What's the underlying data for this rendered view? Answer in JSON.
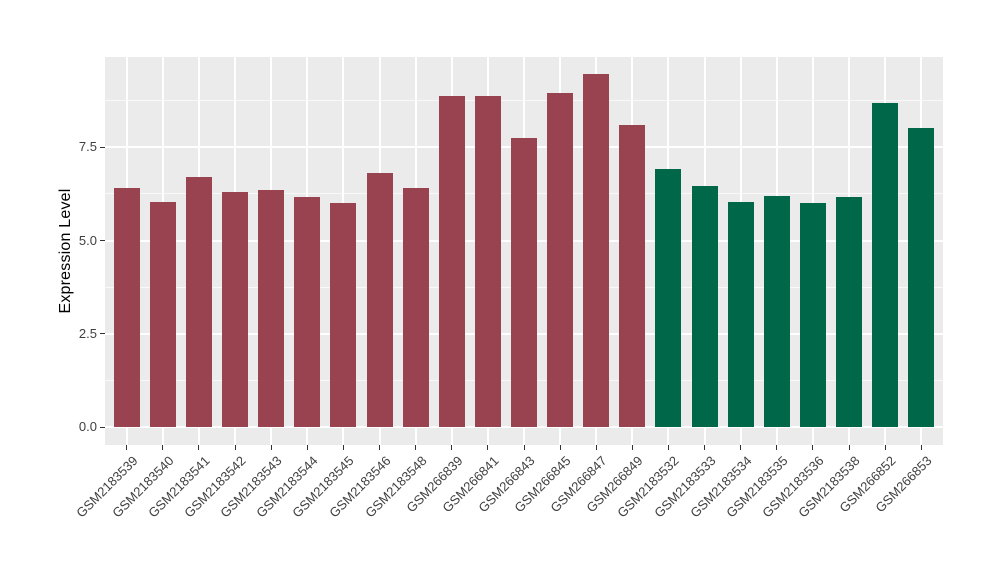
{
  "chart_data": {
    "type": "bar",
    "title": "",
    "xlabel": "",
    "ylabel": "Expression Level",
    "legend_position": "none",
    "grid": true,
    "panel_bg": "#EBEBEB",
    "grid_color": "#FFFFFF",
    "figure_bg": "#FFFFFF",
    "bar_color_group1": "#9A4350",
    "bar_color_group2": "#006748",
    "ylim": [
      -0.47,
      9.92
    ],
    "ytick_labels": [
      "0.0",
      "2.5",
      "5.0",
      "7.5"
    ],
    "ytick_values": [
      0,
      2.5,
      5,
      7.5
    ],
    "minor_gridline_values": [
      1.25,
      3.75,
      6.25,
      8.75
    ],
    "categories": [
      "GSM2183539",
      "GSM2183540",
      "GSM2183541",
      "GSM2183542",
      "GSM2183543",
      "GSM2183544",
      "GSM2183545",
      "GSM2183546",
      "GSM2183548",
      "GSM266839",
      "GSM266841",
      "GSM266843",
      "GSM266845",
      "GSM266847",
      "GSM266849",
      "GSM2183532",
      "GSM2183533",
      "GSM2183534",
      "GSM2183535",
      "GSM2183536",
      "GSM2183538",
      "GSM266852",
      "GSM266853"
    ],
    "values": [
      6.42,
      6.03,
      6.71,
      6.29,
      6.36,
      6.16,
      6.0,
      6.81,
      6.42,
      8.88,
      8.88,
      7.75,
      8.95,
      9.47,
      8.09,
      6.92,
      6.47,
      6.03,
      6.2,
      6.0,
      6.16,
      8.68,
      8.02
    ],
    "bar_colors": [
      "#9A4350",
      "#9A4350",
      "#9A4350",
      "#9A4350",
      "#9A4350",
      "#9A4350",
      "#9A4350",
      "#9A4350",
      "#9A4350",
      "#9A4350",
      "#9A4350",
      "#9A4350",
      "#9A4350",
      "#9A4350",
      "#9A4350",
      "#006748",
      "#006748",
      "#006748",
      "#006748",
      "#006748",
      "#006748",
      "#006748",
      "#006748"
    ]
  }
}
